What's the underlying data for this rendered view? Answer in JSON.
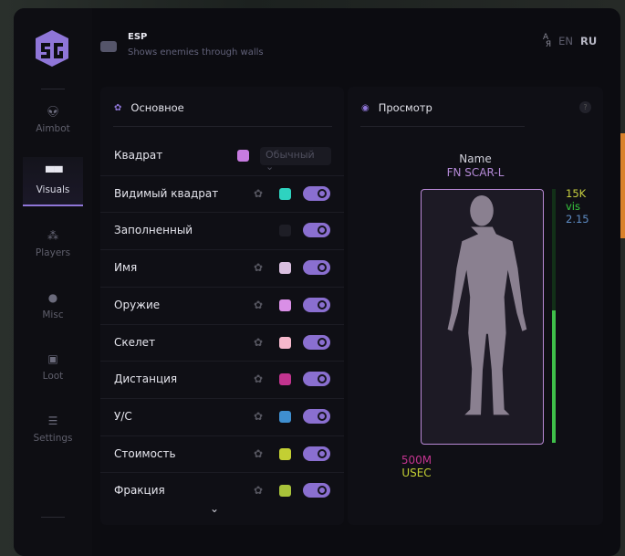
{
  "header": {
    "title": "ESP",
    "subtitle": "Shows enemies through walls",
    "lang": {
      "icon": "translate-icon",
      "en": "EN",
      "ru": "RU",
      "active": "RU"
    }
  },
  "sidebar": {
    "items": [
      {
        "label": "Aimbot",
        "icon": "alien-icon"
      },
      {
        "label": "Visuals",
        "icon": "vr-headset-icon",
        "active": true
      },
      {
        "label": "Players",
        "icon": "users-icon"
      },
      {
        "label": "Misc",
        "icon": "dots-icon"
      },
      {
        "label": "Loot",
        "icon": "toolbox-icon"
      },
      {
        "label": "Settings",
        "icon": "list-icon"
      }
    ]
  },
  "main": {
    "title": "Основное",
    "rows": [
      {
        "label": "Квадрат",
        "color": "#c77be0",
        "select": "Обычный"
      },
      {
        "label": "Видимый квадрат",
        "color": "#2ed3c0",
        "gear": true,
        "on": true
      },
      {
        "label": "Заполненный",
        "color": "#1e1e26",
        "on": true
      },
      {
        "label": "Имя",
        "color": "#d9bfe0",
        "gear": true,
        "on": true
      },
      {
        "label": "Оружие",
        "color": "#d98fe6",
        "gear": true,
        "on": true
      },
      {
        "label": "Скелет",
        "color": "#f6b8cc",
        "gear": true,
        "on": true
      },
      {
        "label": "Дистанция",
        "color": "#c2348f",
        "gear": true,
        "on": true
      },
      {
        "label": "У/С",
        "color": "#3f8fd0",
        "gear": true,
        "on": true
      },
      {
        "label": "Стоимость",
        "color": "#c3cf33",
        "gear": true,
        "on": true
      },
      {
        "label": "Фракция",
        "color": "#a8c23a",
        "gear": true,
        "on": true
      }
    ]
  },
  "preview": {
    "title": "Просмотр",
    "help": "?",
    "name": "Name",
    "weapon": "FN SCAR-L",
    "value": "15K",
    "visible": "vis",
    "kd": "2.15",
    "distance": "500M",
    "faction": "USEC",
    "health_percent": 52,
    "colors": {
      "name": "#d0d0da",
      "weapon": "#b58ad8",
      "value": "#c8d040",
      "visible": "#37c83e",
      "kd": "#5e8cc4",
      "distance": "#c2348f",
      "faction": "#c3cf33"
    }
  },
  "accent": "#8f76d8"
}
